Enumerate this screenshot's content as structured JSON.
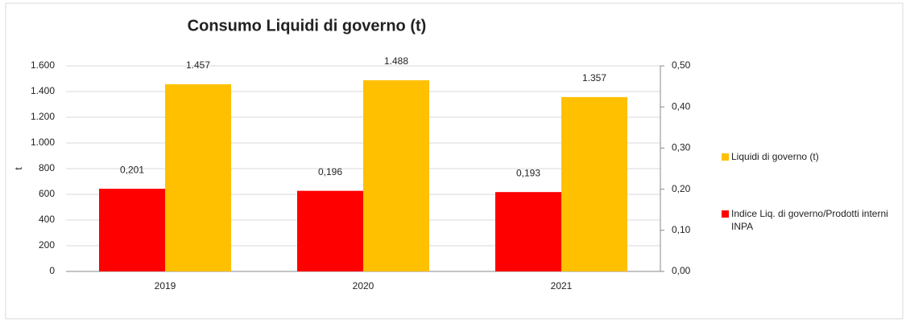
{
  "chart_data": {
    "type": "bar",
    "title": "Consumo Liquidi di governo (t)",
    "ylabel": "t",
    "categories": [
      "2019",
      "2020",
      "2021"
    ],
    "series": [
      {
        "name": "Indice Liq. di governo/Prodotti interni INPA",
        "color": "#ff0000",
        "axis": "y2",
        "values": [
          0.201,
          0.196,
          0.193
        ],
        "value_labels": [
          "0,201",
          "0,196",
          "0,193"
        ]
      },
      {
        "name": "Liquidi di governo (t)",
        "color": "#ffc000",
        "values": [
          1457,
          1488,
          1357
        ],
        "value_labels": [
          "1.457",
          "1.488",
          "1.357"
        ]
      }
    ],
    "ylim": [
      0,
      1600
    ],
    "yticks": [
      0,
      200,
      400,
      600,
      800,
      {
        "value": 1000,
        "label": "1.000"
      },
      {
        "value": 1200,
        "label": "1.200"
      },
      {
        "value": 1400,
        "label": "1.400"
      },
      {
        "value": 1600,
        "label": "1.600"
      }
    ],
    "y2lim": [
      0,
      0.5
    ],
    "y2ticks": [
      {
        "value": 0,
        "label": "0,00"
      },
      {
        "value": 0.1,
        "label": "0,10"
      },
      {
        "value": 0.2,
        "label": "0,20"
      },
      {
        "value": 0.3,
        "label": "0,30"
      },
      {
        "value": 0.4,
        "label": "0,40"
      },
      {
        "value": 0.5,
        "label": "0,50"
      }
    ],
    "grid": true
  }
}
